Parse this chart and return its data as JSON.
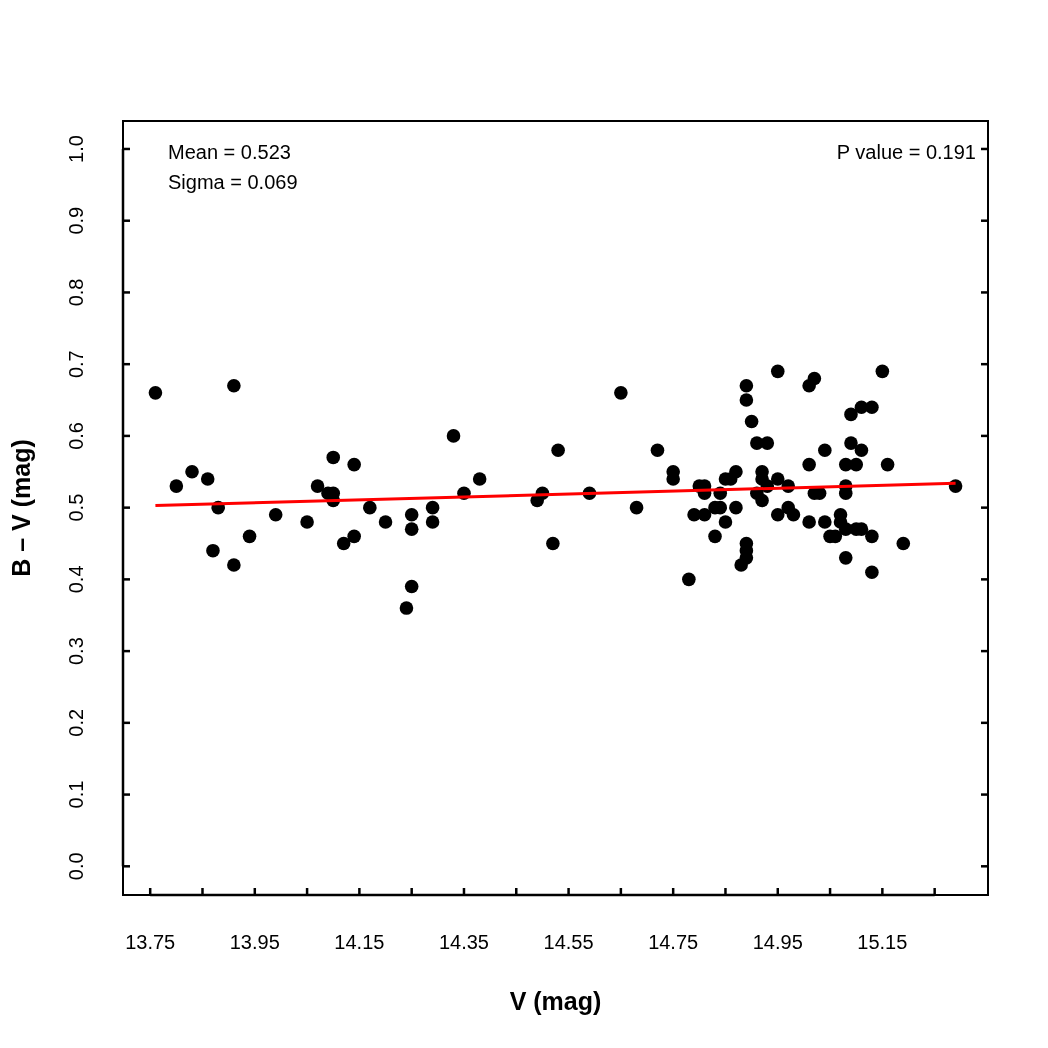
{
  "chart_data": {
    "type": "scatter",
    "xlabel": "V (mag)",
    "ylabel": "B – V (mag)",
    "xlim": [
      13.698,
      15.352
    ],
    "ylim": [
      -0.04,
      1.039
    ],
    "xticks": [
      13.75,
      {
        "value": 13.85,
        "label": null
      },
      13.95,
      {
        "value": 14.05,
        "label": null
      },
      14.15,
      {
        "value": 14.25,
        "label": null
      },
      14.35,
      {
        "value": 14.45,
        "label": null
      },
      14.55,
      {
        "value": 14.65,
        "label": null
      },
      14.75,
      {
        "value": 14.85,
        "label": null
      },
      14.95,
      {
        "value": 15.05,
        "label": null
      },
      15.15,
      {
        "value": 15.25,
        "label": null
      }
    ],
    "yticks": [
      {
        "value": 0,
        "label": "0.0"
      },
      0.1,
      0.2,
      0.3,
      0.4,
      0.5,
      0.6,
      0.7,
      0.8,
      0.9,
      {
        "value": 1,
        "label": "1.0"
      }
    ],
    "grid": false,
    "annotations": [
      "Mean = 0.523",
      "Sigma = 0.069",
      "P value = 0.191"
    ],
    "series": [
      {
        "marker": "circle",
        "color": "#000000",
        "x": [
          13.76,
          13.8,
          13.83,
          13.86,
          13.87,
          13.88,
          13.91,
          13.91,
          13.94,
          13.99,
          14.05,
          14.07,
          14.09,
          14.1,
          14.1,
          14.1,
          14.12,
          14.14,
          14.14,
          14.17,
          14.2,
          14.24,
          14.25,
          14.25,
          14.25,
          14.29,
          14.29,
          14.33,
          14.35,
          14.38,
          14.49,
          14.5,
          14.52,
          14.53,
          14.59,
          14.65,
          14.68,
          14.72,
          14.75,
          14.75,
          14.78,
          14.79,
          14.8,
          14.81,
          14.81,
          14.81,
          14.83,
          14.83,
          14.84,
          14.84,
          14.85,
          14.85,
          14.86,
          14.87,
          14.87,
          14.88,
          14.89,
          14.89,
          14.89,
          14.89,
          14.89,
          14.9,
          14.91,
          14.93,
          14.92,
          14.92,
          14.93,
          14.91,
          14.92,
          14.95,
          14.95,
          14.95,
          14.97,
          14.97,
          14.98,
          15.01,
          15.02,
          15.01,
          15.01,
          15.02,
          15.15,
          15.09,
          15.11,
          15.13,
          15.04,
          15.09,
          15.11,
          15.08,
          15.1,
          15.16,
          15.03,
          15.08,
          15.08,
          15.29,
          15.04,
          15.07,
          15.07,
          15.05,
          15.06,
          15.08,
          15.1,
          15.11,
          15.13,
          15.19,
          15.08,
          15.13
        ],
        "values": [
          0.66,
          0.53,
          0.55,
          0.54,
          0.44,
          0.5,
          0.67,
          0.42,
          0.46,
          0.49,
          0.48,
          0.53,
          0.52,
          0.52,
          0.57,
          0.51,
          0.45,
          0.56,
          0.46,
          0.5,
          0.48,
          0.36,
          0.49,
          0.47,
          0.39,
          0.5,
          0.48,
          0.6,
          0.52,
          0.54,
          0.51,
          0.52,
          0.45,
          0.58,
          0.52,
          0.66,
          0.5,
          0.58,
          0.55,
          0.54,
          0.4,
          0.49,
          0.53,
          0.53,
          0.52,
          0.49,
          0.46,
          0.5,
          0.5,
          0.52,
          0.48,
          0.54,
          0.54,
          0.55,
          0.5,
          0.42,
          0.43,
          0.44,
          0.45,
          0.67,
          0.65,
          0.62,
          0.59,
          0.59,
          0.55,
          0.54,
          0.53,
          0.52,
          0.51,
          0.69,
          0.54,
          0.49,
          0.53,
          0.5,
          0.49,
          0.67,
          0.68,
          0.56,
          0.48,
          0.52,
          0.69,
          0.63,
          0.64,
          0.64,
          0.58,
          0.59,
          0.58,
          0.56,
          0.56,
          0.56,
          0.52,
          0.53,
          0.52,
          0.53,
          0.48,
          0.49,
          0.48,
          0.46,
          0.46,
          0.47,
          0.47,
          0.47,
          0.46,
          0.45,
          0.43,
          0.41
        ]
      },
      {
        "type": "line",
        "color": "#ff0000",
        "x": [
          13.76,
          15.29
        ],
        "values": [
          0.503,
          0.534
        ],
        "line_style": "solid",
        "marker": "none"
      }
    ]
  }
}
